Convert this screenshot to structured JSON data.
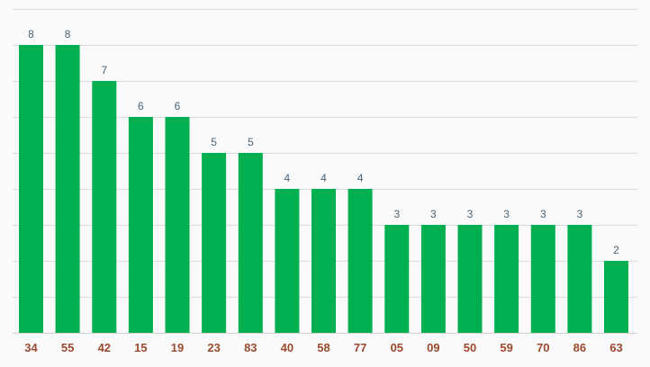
{
  "colors": {
    "bar": "#00b050",
    "data_label": "#4a6378",
    "tick_label": "#9a4a2e",
    "grid": "#dcdcdc",
    "background": "#fafafa"
  },
  "chart_data": {
    "type": "bar",
    "title": "",
    "xlabel": "",
    "ylabel": "",
    "categories": [
      "34",
      "55",
      "42",
      "15",
      "19",
      "23",
      "83",
      "40",
      "58",
      "77",
      "05",
      "09",
      "50",
      "59",
      "70",
      "86",
      "63"
    ],
    "values": [
      8,
      8,
      7,
      6,
      6,
      5,
      5,
      4,
      4,
      4,
      3,
      3,
      3,
      3,
      3,
      3,
      2
    ],
    "ylim": [
      0,
      9
    ],
    "grid": true,
    "legend": "none",
    "data_labels": true
  }
}
